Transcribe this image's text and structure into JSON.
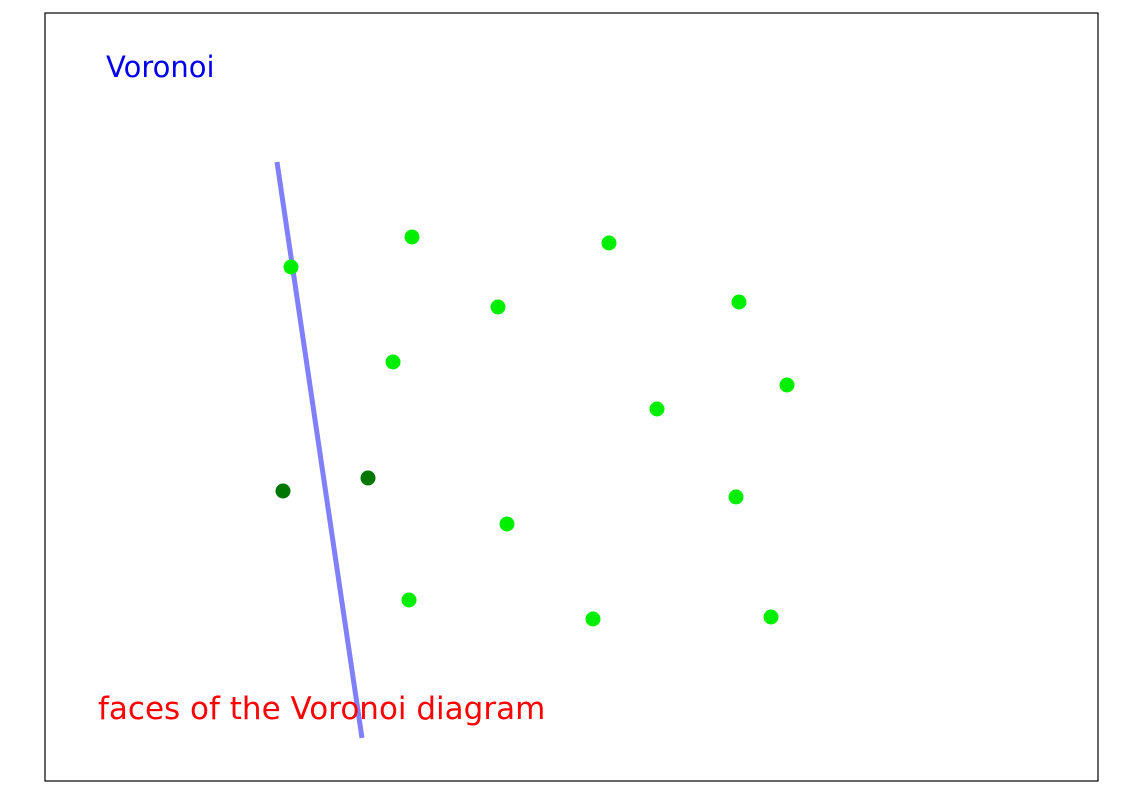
{
  "title": "Voronoi",
  "caption": "faces of the Voronoi diagram",
  "colors": {
    "title": "#0000ee",
    "caption": "#ff0000",
    "frame": "#000000",
    "bisector": "#8080ff",
    "site": "#00ee00",
    "highlighted_site": "#007700"
  },
  "diagram": {
    "bisector": {
      "name": "bisector-line"
    },
    "sites": [
      {
        "name": "site-1",
        "highlighted": false
      },
      {
        "name": "site-2",
        "highlighted": false
      },
      {
        "name": "site-3",
        "highlighted": false
      },
      {
        "name": "site-4",
        "highlighted": false
      },
      {
        "name": "site-5",
        "highlighted": false
      },
      {
        "name": "site-6",
        "highlighted": false
      },
      {
        "name": "site-7",
        "highlighted": false
      },
      {
        "name": "site-8",
        "highlighted": false
      },
      {
        "name": "site-9",
        "highlighted": false
      },
      {
        "name": "site-10",
        "highlighted": true
      },
      {
        "name": "site-11",
        "highlighted": true
      },
      {
        "name": "site-12",
        "highlighted": false
      },
      {
        "name": "site-13",
        "highlighted": false
      },
      {
        "name": "site-14",
        "highlighted": false
      },
      {
        "name": "site-15",
        "highlighted": false
      },
      {
        "name": "site-16",
        "highlighted": false
      }
    ]
  }
}
